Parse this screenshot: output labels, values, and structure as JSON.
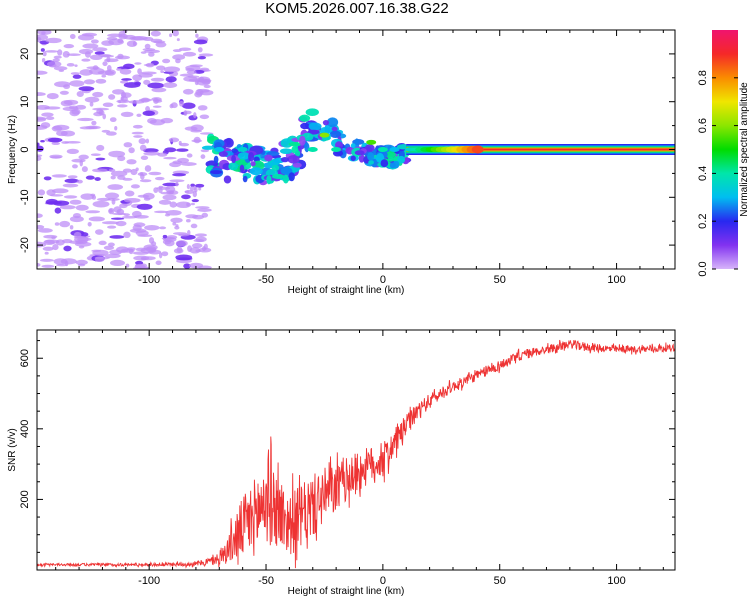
{
  "title": "KOM5.2026.007.16.38.G22",
  "chart_data": [
    {
      "type": "heatmap",
      "xlabel": "Height of straight line (km)",
      "ylabel": "Frequency (Hz)",
      "xlim": [
        -148,
        125
      ],
      "ylim": [
        -25,
        25
      ],
      "xticks": [
        -100,
        -50,
        0,
        50,
        100
      ],
      "yticks": [
        -20,
        -10,
        0,
        10,
        20
      ],
      "xtick_labels": [
        "-100",
        "-50",
        "0",
        "50",
        "100"
      ],
      "ytick_labels": [
        "-20",
        "-10",
        "0",
        "10",
        "20"
      ],
      "colorbar": {
        "label": "Normalized spectral amplitude",
        "range": [
          0,
          1
        ],
        "ticks": [
          0.0,
          0.2,
          0.4,
          0.6,
          0.8
        ],
        "tick_labels": [
          "0.0",
          "0.2",
          "0.4",
          "0.6",
          "0.8"
        ]
      },
      "features": [
        {
          "name": "noise",
          "x_range": [
            -148,
            -75
          ],
          "y_range": [
            -25,
            25
          ],
          "amplitude": 0.05
        },
        {
          "name": "fading-region",
          "x_range": [
            -75,
            10
          ],
          "y_range": [
            -10,
            6
          ],
          "amplitude": 0.15
        },
        {
          "name": "signal-line",
          "x_range": [
            10,
            125
          ],
          "y_value": 0,
          "amplitude": 0.95
        }
      ]
    },
    {
      "type": "line",
      "xlabel": "Height of straight line (km)",
      "ylabel": "SNR (v/v)",
      "xlim": [
        -148,
        125
      ],
      "ylim": [
        0,
        680
      ],
      "xticks": [
        -100,
        -50,
        0,
        50,
        100
      ],
      "yticks": [
        200,
        400,
        600
      ],
      "xtick_labels": [
        "-100",
        "-50",
        "0",
        "50",
        "100"
      ],
      "ytick_labels": [
        "200",
        "400",
        "600"
      ],
      "color": "#ee3333",
      "x": [
        -148,
        -120,
        -100,
        -80,
        -70,
        -65,
        -60,
        -55,
        -50,
        -45,
        -40,
        -35,
        -30,
        -25,
        -20,
        -15,
        -10,
        -5,
        0,
        5,
        10,
        15,
        20,
        30,
        40,
        50,
        60,
        70,
        80,
        90,
        100,
        110,
        125
      ],
      "values": [
        15,
        15,
        15,
        17,
        30,
        70,
        120,
        150,
        200,
        170,
        130,
        150,
        180,
        210,
        230,
        260,
        280,
        300,
        310,
        360,
        410,
        450,
        480,
        520,
        550,
        580,
        610,
        625,
        640,
        630,
        625,
        625,
        630
      ],
      "amplitude": [
        3,
        4,
        4,
        6,
        15,
        50,
        90,
        110,
        130,
        110,
        90,
        90,
        90,
        80,
        70,
        60,
        60,
        50,
        50,
        40,
        30,
        25,
        20,
        15,
        15,
        15,
        15,
        12,
        12,
        12,
        10,
        10,
        10
      ]
    }
  ]
}
